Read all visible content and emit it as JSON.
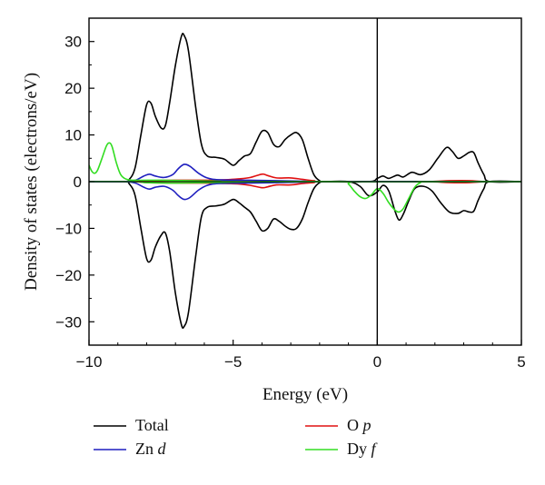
{
  "chart_data": {
    "type": "line",
    "title": "",
    "xlabel": "Energy (eV)",
    "ylabel": "Density of states (electrons/eV)",
    "xlim": [
      -10,
      5
    ],
    "ylim": [
      -35,
      35
    ],
    "x_ticks": [
      -10,
      -5,
      0,
      5
    ],
    "y_ticks": [
      -30,
      -20,
      -10,
      0,
      10,
      20,
      30
    ],
    "x_tick_labels": [
      "−10",
      "−5",
      "0",
      "5"
    ],
    "y_tick_labels": [
      "−30",
      "−20",
      "−10",
      "0",
      "10",
      "20",
      "30"
    ],
    "fermi_level_line_x": 0,
    "grid": false,
    "legend_placement": "bottom, below plot, two columns",
    "series": [
      {
        "name": "Total",
        "color": "#000000",
        "up": [
          [
            -10,
            0
          ],
          [
            -8.8,
            0
          ],
          [
            -8.6,
            0.5
          ],
          [
            -8.4,
            3
          ],
          [
            -8.2,
            10
          ],
          [
            -8.0,
            16.5
          ],
          [
            -7.85,
            16.8
          ],
          [
            -7.7,
            14
          ],
          [
            -7.5,
            11.5
          ],
          [
            -7.35,
            12
          ],
          [
            -7.2,
            17
          ],
          [
            -7.0,
            25
          ],
          [
            -6.8,
            31
          ],
          [
            -6.7,
            31.3
          ],
          [
            -6.55,
            28
          ],
          [
            -6.3,
            16
          ],
          [
            -6.1,
            8
          ],
          [
            -5.9,
            5.5
          ],
          [
            -5.6,
            5.2
          ],
          [
            -5.3,
            4.8
          ],
          [
            -5.0,
            3.5
          ],
          [
            -4.8,
            4.5
          ],
          [
            -4.6,
            5.5
          ],
          [
            -4.4,
            6
          ],
          [
            -4.2,
            8.5
          ],
          [
            -4.0,
            10.8
          ],
          [
            -3.8,
            10.5
          ],
          [
            -3.6,
            8
          ],
          [
            -3.4,
            7.5
          ],
          [
            -3.2,
            9
          ],
          [
            -3.0,
            10
          ],
          [
            -2.8,
            10.5
          ],
          [
            -2.6,
            9
          ],
          [
            -2.4,
            5
          ],
          [
            -2.2,
            1.5
          ],
          [
            -2.0,
            0.2
          ],
          [
            -1.8,
            0
          ],
          [
            -0.3,
            0
          ],
          [
            0,
            0.7
          ],
          [
            0.2,
            1.2
          ],
          [
            0.4,
            0.7
          ],
          [
            0.7,
            1.4
          ],
          [
            0.9,
            1.0
          ],
          [
            1.2,
            2
          ],
          [
            1.5,
            1.5
          ],
          [
            1.8,
            2.5
          ],
          [
            2.1,
            5
          ],
          [
            2.4,
            7.3
          ],
          [
            2.6,
            6.5
          ],
          [
            2.8,
            5
          ],
          [
            3.0,
            5.5
          ],
          [
            3.2,
            6.3
          ],
          [
            3.35,
            6.2
          ],
          [
            3.5,
            4
          ],
          [
            3.7,
            1.5
          ],
          [
            3.9,
            0
          ],
          [
            5,
            0
          ]
        ],
        "down": [
          [
            -10,
            0
          ],
          [
            -8.8,
            0
          ],
          [
            -8.6,
            -0.5
          ],
          [
            -8.4,
            -3
          ],
          [
            -8.2,
            -10
          ],
          [
            -8.0,
            -16.5
          ],
          [
            -7.85,
            -16.8
          ],
          [
            -7.7,
            -14
          ],
          [
            -7.5,
            -11.5
          ],
          [
            -7.35,
            -11
          ],
          [
            -7.2,
            -15
          ],
          [
            -7.0,
            -24
          ],
          [
            -6.8,
            -30.5
          ],
          [
            -6.7,
            -31
          ],
          [
            -6.55,
            -28
          ],
          [
            -6.3,
            -16
          ],
          [
            -6.1,
            -7.5
          ],
          [
            -5.9,
            -5.5
          ],
          [
            -5.6,
            -5.2
          ],
          [
            -5.3,
            -4.8
          ],
          [
            -5.0,
            -3.8
          ],
          [
            -4.8,
            -4.5
          ],
          [
            -4.6,
            -5.5
          ],
          [
            -4.4,
            -6.5
          ],
          [
            -4.2,
            -8.5
          ],
          [
            -4.0,
            -10.5
          ],
          [
            -3.8,
            -10
          ],
          [
            -3.6,
            -8
          ],
          [
            -3.4,
            -8.5
          ],
          [
            -3.2,
            -9.5
          ],
          [
            -3.0,
            -10.2
          ],
          [
            -2.8,
            -10
          ],
          [
            -2.6,
            -8
          ],
          [
            -2.4,
            -4.5
          ],
          [
            -2.2,
            -1.5
          ],
          [
            -2.0,
            -0.2
          ],
          [
            -1.8,
            0
          ],
          [
            -1.0,
            0
          ],
          [
            -0.6,
            -1
          ],
          [
            -0.3,
            -3
          ],
          [
            0,
            -2.2
          ],
          [
            0.2,
            -0.8
          ],
          [
            0.4,
            -2
          ],
          [
            0.6,
            -6
          ],
          [
            0.75,
            -8.2
          ],
          [
            0.9,
            -7
          ],
          [
            1.1,
            -4
          ],
          [
            1.3,
            -1.5
          ],
          [
            1.6,
            -1
          ],
          [
            1.9,
            -2
          ],
          [
            2.2,
            -4.5
          ],
          [
            2.5,
            -6.5
          ],
          [
            2.8,
            -6.8
          ],
          [
            3.0,
            -6.2
          ],
          [
            3.2,
            -6.5
          ],
          [
            3.35,
            -6.3
          ],
          [
            3.5,
            -4
          ],
          [
            3.7,
            -1.5
          ],
          [
            3.9,
            0
          ],
          [
            5,
            0
          ]
        ]
      },
      {
        "name": "Zn d",
        "color": "#1f1fbf",
        "up": [
          [
            -10,
            0
          ],
          [
            -8.8,
            0
          ],
          [
            -8.4,
            0.3
          ],
          [
            -8.1,
            1.2
          ],
          [
            -7.9,
            1.6
          ],
          [
            -7.7,
            1.2
          ],
          [
            -7.4,
            0.9
          ],
          [
            -7.1,
            1.5
          ],
          [
            -6.9,
            2.8
          ],
          [
            -6.7,
            3.7
          ],
          [
            -6.5,
            3.3
          ],
          [
            -6.2,
            1.8
          ],
          [
            -5.9,
            0.8
          ],
          [
            -5.5,
            0.4
          ],
          [
            -4.5,
            0.3
          ],
          [
            -3.5,
            0.2
          ],
          [
            -2.5,
            0.1
          ],
          [
            -2,
            0
          ],
          [
            5,
            0
          ]
        ],
        "down": [
          [
            -10,
            0
          ],
          [
            -8.8,
            0
          ],
          [
            -8.4,
            -0.3
          ],
          [
            -8.1,
            -1.2
          ],
          [
            -7.9,
            -1.6
          ],
          [
            -7.7,
            -1.2
          ],
          [
            -7.4,
            -1.0
          ],
          [
            -7.1,
            -1.8
          ],
          [
            -6.9,
            -3.0
          ],
          [
            -6.7,
            -3.8
          ],
          [
            -6.5,
            -3.4
          ],
          [
            -6.2,
            -1.8
          ],
          [
            -5.9,
            -0.8
          ],
          [
            -5.5,
            -0.4
          ],
          [
            -4.5,
            -0.3
          ],
          [
            -3.5,
            -0.2
          ],
          [
            -2.5,
            -0.1
          ],
          [
            -2,
            0
          ],
          [
            5,
            0
          ]
        ]
      },
      {
        "name": "O p",
        "color": "#e01010",
        "up": [
          [
            -10,
            0
          ],
          [
            -8.5,
            0
          ],
          [
            -8.0,
            0.2
          ],
          [
            -7.0,
            0.3
          ],
          [
            -6.0,
            0.3
          ],
          [
            -5.3,
            0.4
          ],
          [
            -4.8,
            0.6
          ],
          [
            -4.4,
            0.9
          ],
          [
            -4.0,
            1.6
          ],
          [
            -3.8,
            1.3
          ],
          [
            -3.5,
            0.8
          ],
          [
            -3.0,
            0.8
          ],
          [
            -2.6,
            0.5
          ],
          [
            -2.2,
            0.2
          ],
          [
            -1.8,
            0
          ],
          [
            1.5,
            0
          ],
          [
            2.5,
            0.2
          ],
          [
            3.2,
            0.2
          ],
          [
            3.8,
            0
          ],
          [
            5,
            0
          ]
        ],
        "down": [
          [
            -10,
            0
          ],
          [
            -8.5,
            0
          ],
          [
            -8.0,
            -0.2
          ],
          [
            -7.0,
            -0.3
          ],
          [
            -6.0,
            -0.3
          ],
          [
            -5.3,
            -0.4
          ],
          [
            -4.8,
            -0.5
          ],
          [
            -4.4,
            -0.8
          ],
          [
            -4.0,
            -1.3
          ],
          [
            -3.8,
            -1.1
          ],
          [
            -3.5,
            -0.7
          ],
          [
            -3.0,
            -0.7
          ],
          [
            -2.6,
            -0.4
          ],
          [
            -2.2,
            -0.2
          ],
          [
            -1.8,
            0
          ],
          [
            1.5,
            0
          ],
          [
            2.5,
            -0.2
          ],
          [
            3.2,
            -0.2
          ],
          [
            3.8,
            0
          ],
          [
            5,
            0
          ]
        ]
      },
      {
        "name": "Dy f",
        "color": "#33dd22",
        "up": [
          [
            -10,
            3.5
          ],
          [
            -9.9,
            2.2
          ],
          [
            -9.8,
            1.8
          ],
          [
            -9.7,
            2.5
          ],
          [
            -9.55,
            5
          ],
          [
            -9.4,
            7.6
          ],
          [
            -9.3,
            8.3
          ],
          [
            -9.2,
            7.5
          ],
          [
            -9.05,
            4
          ],
          [
            -8.9,
            1.5
          ],
          [
            -8.7,
            0.5
          ],
          [
            -8.4,
            0.3
          ],
          [
            -7.5,
            0.3
          ],
          [
            -6.5,
            0.2
          ],
          [
            -5.5,
            0.1
          ],
          [
            -4.5,
            0
          ],
          [
            5,
            0
          ]
        ],
        "down": [
          [
            -10,
            0
          ],
          [
            -8.4,
            0
          ],
          [
            -8.0,
            -0.2
          ],
          [
            -7.0,
            -0.3
          ],
          [
            -6.0,
            -0.2
          ],
          [
            -5.0,
            -0.1
          ],
          [
            -4.0,
            0
          ],
          [
            -1.2,
            0
          ],
          [
            -1.0,
            -0.5
          ],
          [
            -0.8,
            -2
          ],
          [
            -0.6,
            -3.2
          ],
          [
            -0.4,
            -3.6
          ],
          [
            -0.2,
            -2.8
          ],
          [
            0,
            -1.5
          ],
          [
            0.2,
            -2.5
          ],
          [
            0.4,
            -4.5
          ],
          [
            0.6,
            -6
          ],
          [
            0.75,
            -6.5
          ],
          [
            0.9,
            -5.8
          ],
          [
            1.1,
            -3.5
          ],
          [
            1.3,
            -1.2
          ],
          [
            1.5,
            -0.2
          ],
          [
            1.7,
            0
          ],
          [
            5,
            0
          ]
        ]
      }
    ]
  },
  "legend": [
    {
      "label": "Total",
      "main": "Total",
      "italic": "",
      "color": "#000000"
    },
    {
      "label": "O p",
      "main": "O ",
      "italic": "p",
      "color": "#e01010"
    },
    {
      "label": "Zn d",
      "main": "Zn ",
      "italic": "d",
      "color": "#1f1fbf"
    },
    {
      "label": "Dy f",
      "main": "Dy ",
      "italic": "f",
      "color": "#33dd22"
    }
  ]
}
